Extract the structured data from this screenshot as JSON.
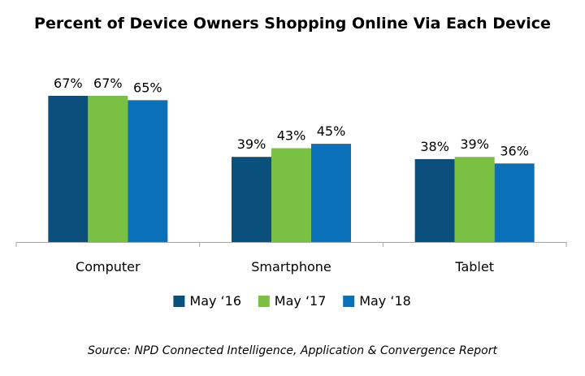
{
  "chart_data": {
    "type": "bar",
    "title": "Percent of Device Owners Shopping Online Via Each Device",
    "categories": [
      "Computer",
      "Smartphone",
      "Tablet"
    ],
    "series": [
      {
        "name": "May ‘16",
        "values": [
          67,
          39,
          38
        ],
        "color": "#0b4f7c"
      },
      {
        "name": "May ‘17",
        "values": [
          67,
          43,
          39
        ],
        "color": "#7ac143"
      },
      {
        "name": "May ‘18",
        "values": [
          65,
          45,
          36
        ],
        "color": "#0a70b8"
      }
    ],
    "value_suffix": "%",
    "ylim": [
      0,
      67
    ],
    "grid": false,
    "legend_position": "bottom",
    "source": "Source: NPD Connected Intelligence, Application & Convergence Report"
  }
}
